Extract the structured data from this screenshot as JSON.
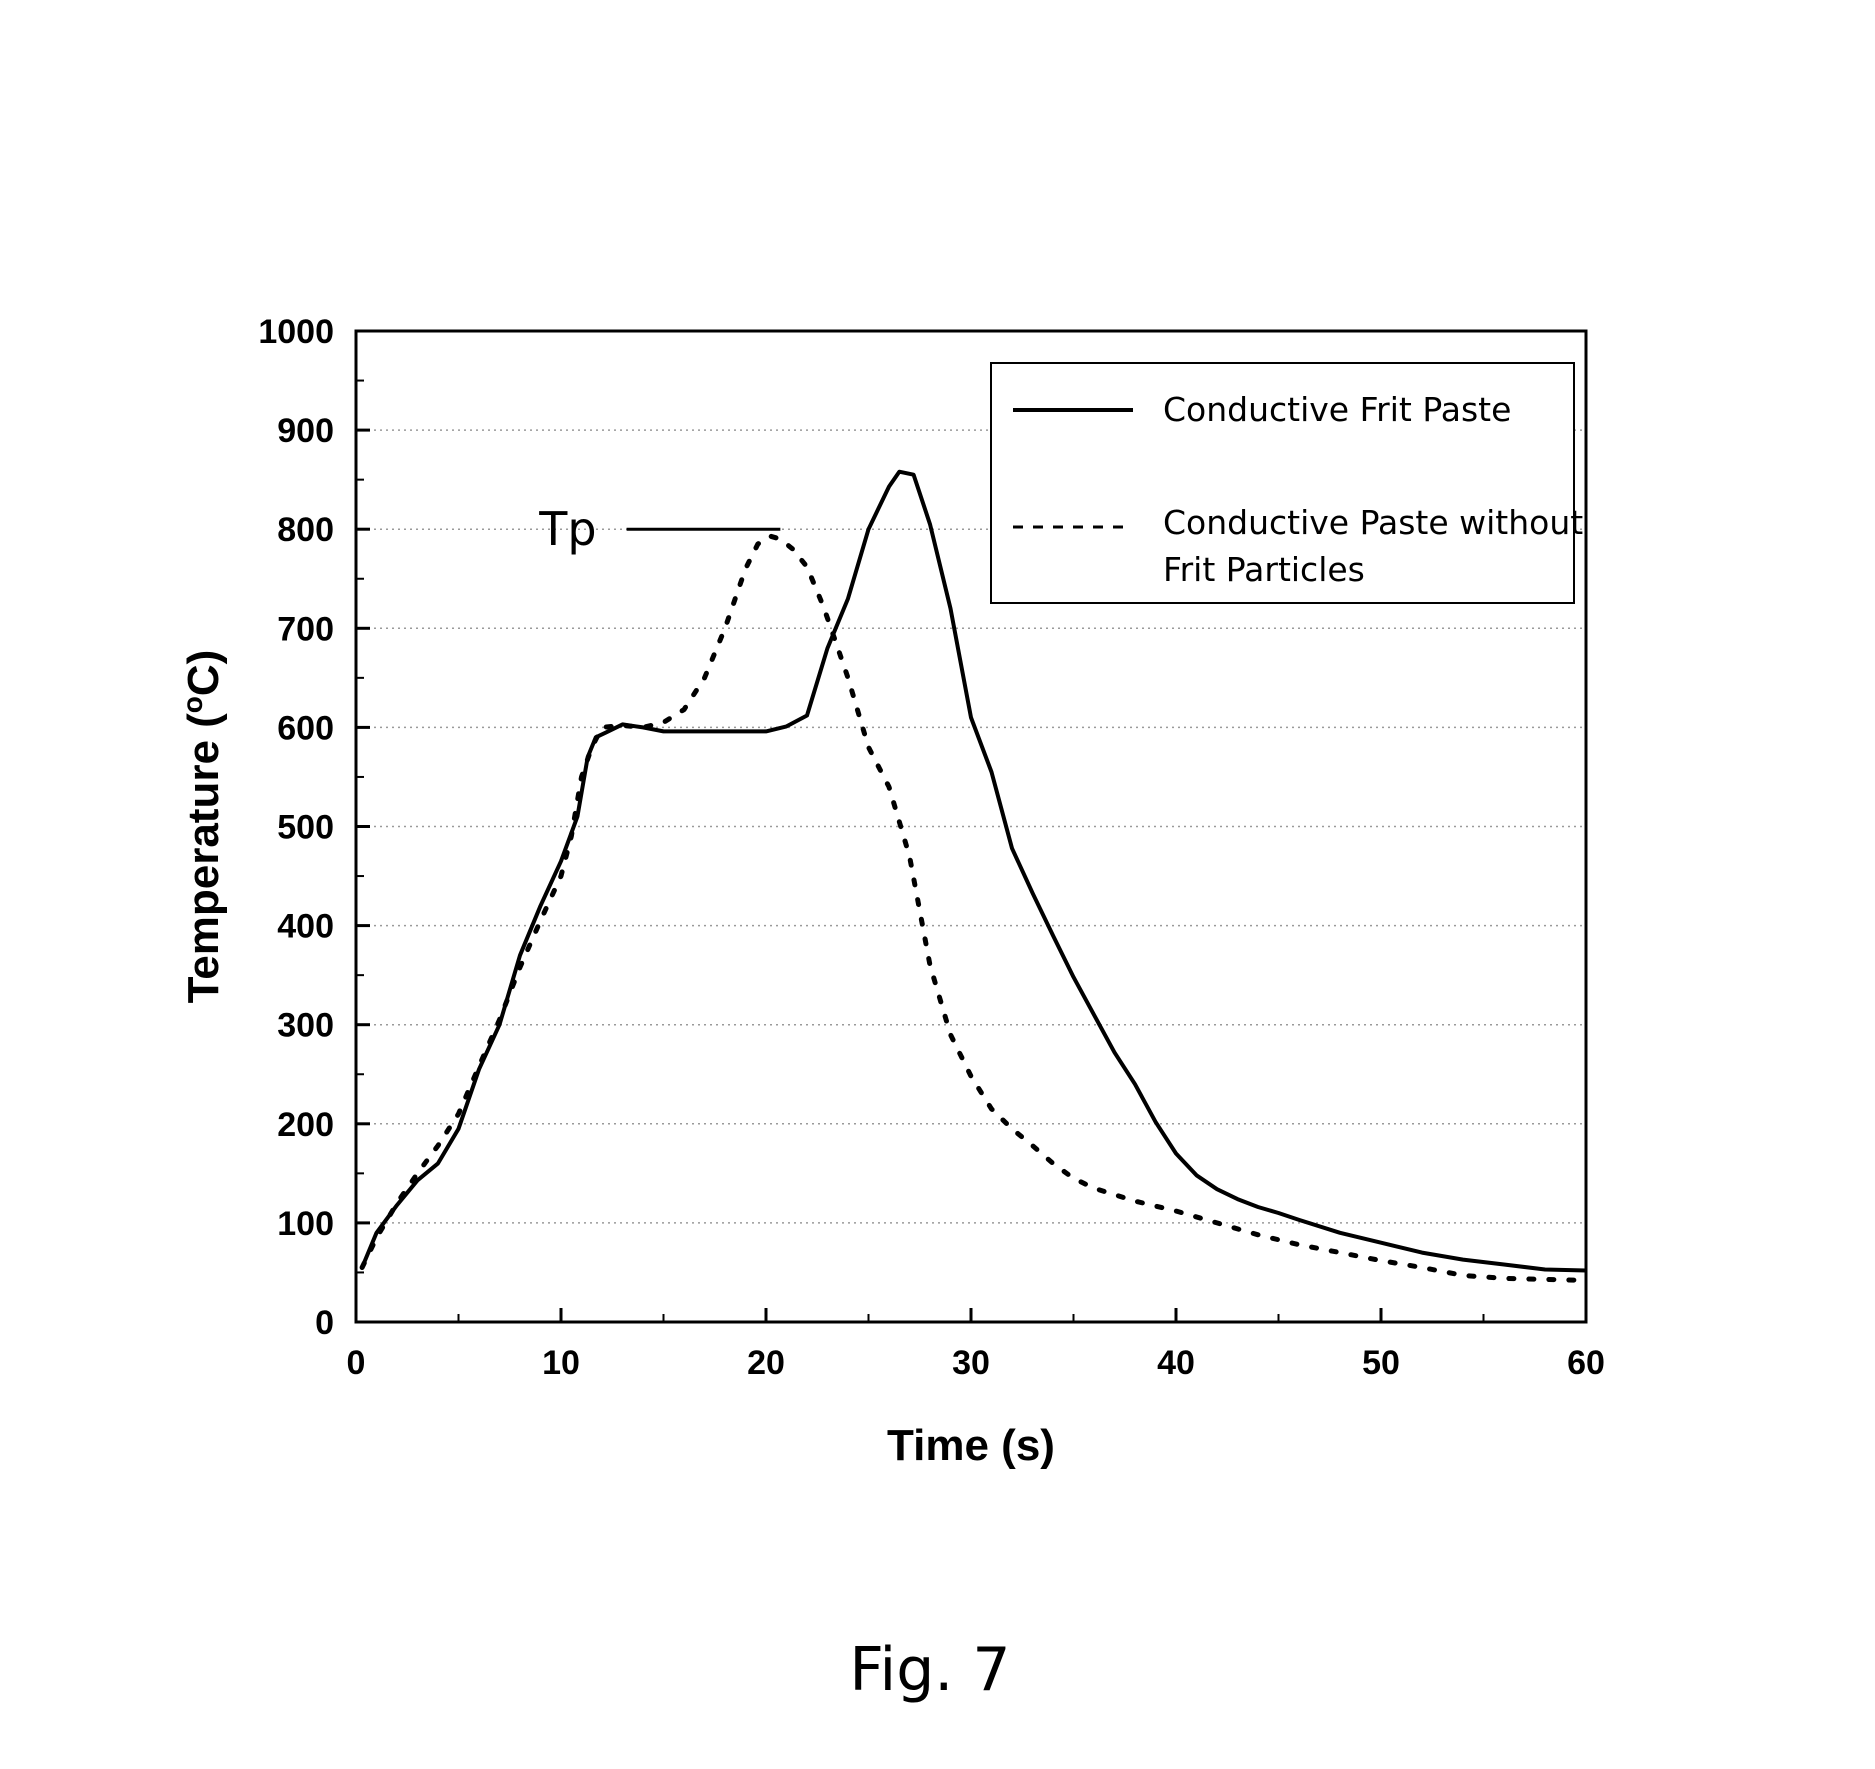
{
  "chart_data": {
    "type": "line",
    "title": "",
    "xlabel": "Time (s)",
    "ylabel_main": "Temperature (",
    "ylabel_sup": "o",
    "ylabel_tail": "C)",
    "xlim": [
      0,
      60
    ],
    "ylim": [
      0,
      1000
    ],
    "xticks": [
      0,
      10,
      20,
      30,
      40,
      50,
      60
    ],
    "yticks": [
      0,
      100,
      200,
      300,
      400,
      500,
      600,
      700,
      800,
      900,
      1000
    ],
    "grid": "horizontal dotted",
    "legend_position": "top-right",
    "series": [
      {
        "name": "Conductive Frit Paste",
        "style": "solid",
        "color": "#000000",
        "x": [
          0.3,
          1,
          2,
          3,
          4,
          5,
          6,
          7,
          8,
          9,
          10,
          10.8,
          11.3,
          11.7,
          12.2,
          13,
          14,
          15,
          16,
          18,
          20,
          21,
          22,
          23,
          24,
          25,
          26,
          26.5,
          27.2,
          28,
          29,
          30,
          31,
          32,
          33,
          34,
          35,
          36,
          37,
          38,
          39,
          40,
          41,
          42,
          43,
          44,
          45,
          46,
          48,
          50,
          52,
          54,
          56,
          58,
          60
        ],
        "y": [
          55,
          90,
          118,
          143,
          160,
          195,
          255,
          300,
          370,
          420,
          465,
          510,
          570,
          590,
          595,
          603,
          600,
          596,
          596,
          596,
          596,
          601,
          612,
          680,
          730,
          800,
          843,
          858,
          855,
          805,
          720,
          610,
          555,
          478,
          433,
          390,
          348,
          310,
          272,
          240,
          202,
          170,
          148,
          134,
          124,
          116,
          110,
          103,
          90,
          80,
          70,
          63,
          58,
          53,
          52
        ]
      },
      {
        "name": "Conductive Paste without Frit Particles",
        "style": "dotted",
        "color": "#000000",
        "x": [
          0.3,
          1,
          2,
          3,
          4,
          5,
          6,
          7,
          8,
          9,
          10,
          10.5,
          11,
          11.5,
          12,
          13,
          14,
          15,
          16,
          17,
          18,
          19,
          19.6,
          20.2,
          20.7,
          21.3,
          22,
          22.8,
          23.5,
          24,
          25,
          26,
          27,
          28,
          29,
          30,
          31,
          32,
          33,
          34,
          35,
          36,
          38,
          40,
          42,
          44,
          46,
          48,
          50,
          52,
          54,
          56,
          58,
          60
        ],
        "y": [
          55,
          85,
          120,
          150,
          178,
          210,
          258,
          305,
          358,
          405,
          450,
          490,
          550,
          580,
          600,
          602,
          600,
          605,
          618,
          650,
          700,
          760,
          785,
          793,
          790,
          780,
          762,
          722,
          680,
          650,
          580,
          540,
          470,
          360,
          290,
          248,
          215,
          195,
          178,
          160,
          145,
          135,
          122,
          112,
          100,
          88,
          78,
          70,
          62,
          55,
          47,
          44,
          43,
          42
        ]
      }
    ],
    "annotations": [
      {
        "text": "Tp",
        "x_start": 13.2,
        "x_end": 20.7,
        "y": 800
      }
    ]
  },
  "caption": "Fig. 7"
}
